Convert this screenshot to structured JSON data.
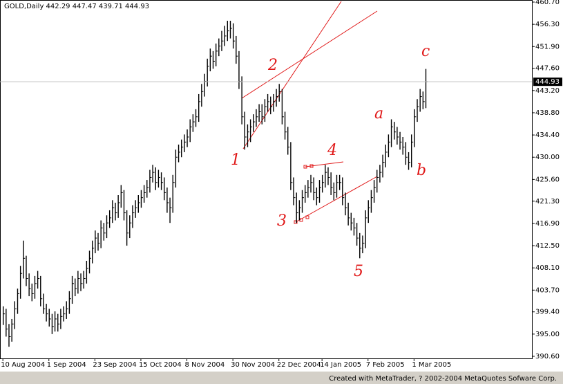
{
  "chart_data": {
    "type": "ohlc",
    "title": "GOLD,Daily  442.29 447.47 439.71 444.93",
    "footer": "Created with MetaTrader, ? 2002-2004 MetaQuotes Sofware Corp.",
    "high": [
      400.5,
      400,
      397,
      398,
      401.5,
      404,
      408.5,
      413.5,
      410.5,
      407,
      405,
      406.5,
      407.5,
      406.5,
      403,
      401,
      400,
      399,
      399.5,
      399,
      400,
      400.5,
      401.5,
      403.5,
      406.5,
      406,
      407.5,
      407,
      407.5,
      409.5,
      411.5,
      413.5,
      415.5,
      415,
      417.5,
      417,
      418.5,
      419.5,
      421.5,
      421,
      422.5,
      424.5,
      423.5,
      419.5,
      418.5,
      420.5,
      421.5,
      422.5,
      423.5,
      424.5,
      425.5,
      427.5,
      428.5,
      428,
      427.5,
      427,
      426,
      424,
      422,
      426.5,
      431.5,
      432.5,
      433.5,
      434.5,
      435.5,
      437.5,
      438.5,
      439.5,
      442.5,
      444.5,
      446.5,
      449.5,
      451.5,
      451,
      452.5,
      453.5,
      455,
      456,
      457,
      457,
      456.5,
      454,
      451,
      446,
      439,
      436.5,
      437.5,
      438.5,
      439.5,
      440.5,
      440.5,
      441.5,
      442.5,
      442,
      442.5,
      443.5,
      444.5,
      443.5,
      439,
      436,
      433,
      426,
      423,
      421.5,
      423.5,
      424.5,
      425.5,
      426.5,
      426,
      424,
      425.5,
      426.5,
      428.5,
      428,
      427,
      425,
      426.5,
      426.5,
      426,
      423,
      421,
      419,
      418,
      417,
      415,
      414.5,
      419.5,
      421.5,
      423.5,
      425.5,
      427.5,
      428.5,
      430.5,
      432.5,
      434.5,
      437.5,
      437,
      436,
      435,
      434,
      433,
      431,
      434.5,
      439.5,
      441.5,
      443.5,
      443,
      447.47
    ],
    "low": [
      396.8,
      394.5,
      392.5,
      393.5,
      396,
      399,
      402,
      406,
      404.5,
      402.5,
      401.5,
      402,
      404,
      400.5,
      399,
      397.5,
      396.5,
      395,
      395.5,
      395.5,
      396,
      397.5,
      398,
      399,
      401,
      402.5,
      403,
      403.5,
      404,
      405,
      407,
      409,
      411,
      411.5,
      412,
      413.5,
      414,
      416,
      417,
      417.5,
      418,
      420,
      417.5,
      412.5,
      414,
      416,
      418,
      419,
      420,
      421,
      422,
      423,
      425,
      423.5,
      424,
      423.5,
      421.5,
      419,
      417,
      419,
      424,
      429,
      430,
      431,
      432,
      433,
      435,
      436,
      437,
      440,
      442,
      444,
      447,
      447.5,
      448,
      450,
      451,
      452,
      453,
      453.5,
      451.5,
      448.5,
      443.5,
      436.5,
      431.5,
      432,
      433,
      435,
      436,
      437,
      436.5,
      437,
      439,
      438.5,
      439,
      440,
      441,
      436.5,
      433.5,
      430.5,
      423.5,
      420.5,
      417,
      417.5,
      419,
      421,
      422,
      423,
      421.5,
      420.5,
      421,
      423,
      424,
      424.5,
      422.5,
      421.5,
      422,
      423.5,
      420.5,
      418.5,
      416.5,
      415.5,
      414.5,
      412.5,
      410,
      411,
      412,
      417,
      419,
      421,
      423,
      425,
      426,
      428,
      430,
      432,
      433.5,
      432.5,
      431.5,
      430.5,
      428.5,
      427.5,
      428,
      432,
      437,
      439,
      439.5,
      439.71
    ],
    "close": [
      399,
      396,
      394.5,
      397,
      400,
      403,
      407,
      410,
      406,
      404,
      403,
      405,
      406,
      402,
      400,
      399,
      398,
      396.5,
      398,
      397,
      398.5,
      399,
      400,
      402,
      405,
      404,
      406,
      405,
      406,
      408,
      410,
      412,
      414,
      413,
      416,
      415,
      417,
      418,
      420,
      419,
      421,
      423,
      419,
      415,
      417,
      419,
      420,
      421,
      422,
      423,
      424,
      426,
      427,
      425,
      426,
      425,
      423,
      421,
      420,
      425,
      430,
      431,
      432,
      433,
      434,
      436,
      437,
      438,
      441,
      443,
      445,
      448,
      450,
      449,
      451,
      452,
      453,
      454,
      455,
      455.5,
      453,
      450,
      445,
      438,
      434,
      435,
      436,
      437,
      438,
      439,
      438,
      440,
      441,
      440,
      441,
      442,
      443,
      438,
      435,
      432,
      425,
      422,
      419,
      420,
      422,
      423,
      424,
      425,
      423,
      422,
      424,
      425,
      427,
      426,
      424,
      423,
      425,
      425,
      422,
      420,
      418,
      417,
      416,
      414,
      412,
      413,
      418,
      420,
      422,
      424,
      426,
      427,
      429,
      431,
      433,
      436,
      435,
      434,
      433,
      432,
      430,
      429,
      433,
      438,
      440,
      442,
      441,
      444.93
    ],
    "xlim": [
      -1,
      184
    ],
    "xticks": [
      {
        "value": 0,
        "label": "10 Aug 2004"
      },
      {
        "value": 16,
        "label": "1 Sep 2004"
      },
      {
        "value": 32,
        "label": "23 Sep 2004"
      },
      {
        "value": 48,
        "label": "15 Oct 2004"
      },
      {
        "value": 64,
        "label": "8 Nov 2004"
      },
      {
        "value": 80,
        "label": "30 Nov 2004"
      },
      {
        "value": 96,
        "label": "22 Dec 2004"
      },
      {
        "value": 111,
        "label": "14 Jan 2005"
      },
      {
        "value": 127,
        "label": "7 Feb 2005"
      },
      {
        "value": 143,
        "label": "1 Mar 2005"
      }
    ],
    "ylim": [
      390.6,
      460.7
    ],
    "yticks": [
      {
        "value": 390.6,
        "label": "390.60"
      },
      {
        "value": 395,
        "label": "395.00"
      },
      {
        "value": 399.4,
        "label": "399.40"
      },
      {
        "value": 403.7,
        "label": "403.70"
      },
      {
        "value": 408.1,
        "label": "408.10"
      },
      {
        "value": 412.5,
        "label": "412.50"
      },
      {
        "value": 416.9,
        "label": "416.90"
      },
      {
        "value": 421.3,
        "label": "421.30"
      },
      {
        "value": 425.6,
        "label": "425.60"
      },
      {
        "value": 430,
        "label": "430.00"
      },
      {
        "value": 434.4,
        "label": "434.40"
      },
      {
        "value": 438.8,
        "label": "438.80"
      },
      {
        "value": 443.2,
        "label": "443.20"
      },
      {
        "value": 447.6,
        "label": "447.60"
      },
      {
        "value": 451.9,
        "label": "451.90"
      },
      {
        "value": 456.3,
        "label": "456.30"
      },
      {
        "value": 460.7,
        "label": "460.70"
      }
    ],
    "color": "#000000",
    "annotations": [
      "1",
      "2",
      "3",
      "4",
      "5",
      "a",
      "b",
      "c"
    ]
  }
}
